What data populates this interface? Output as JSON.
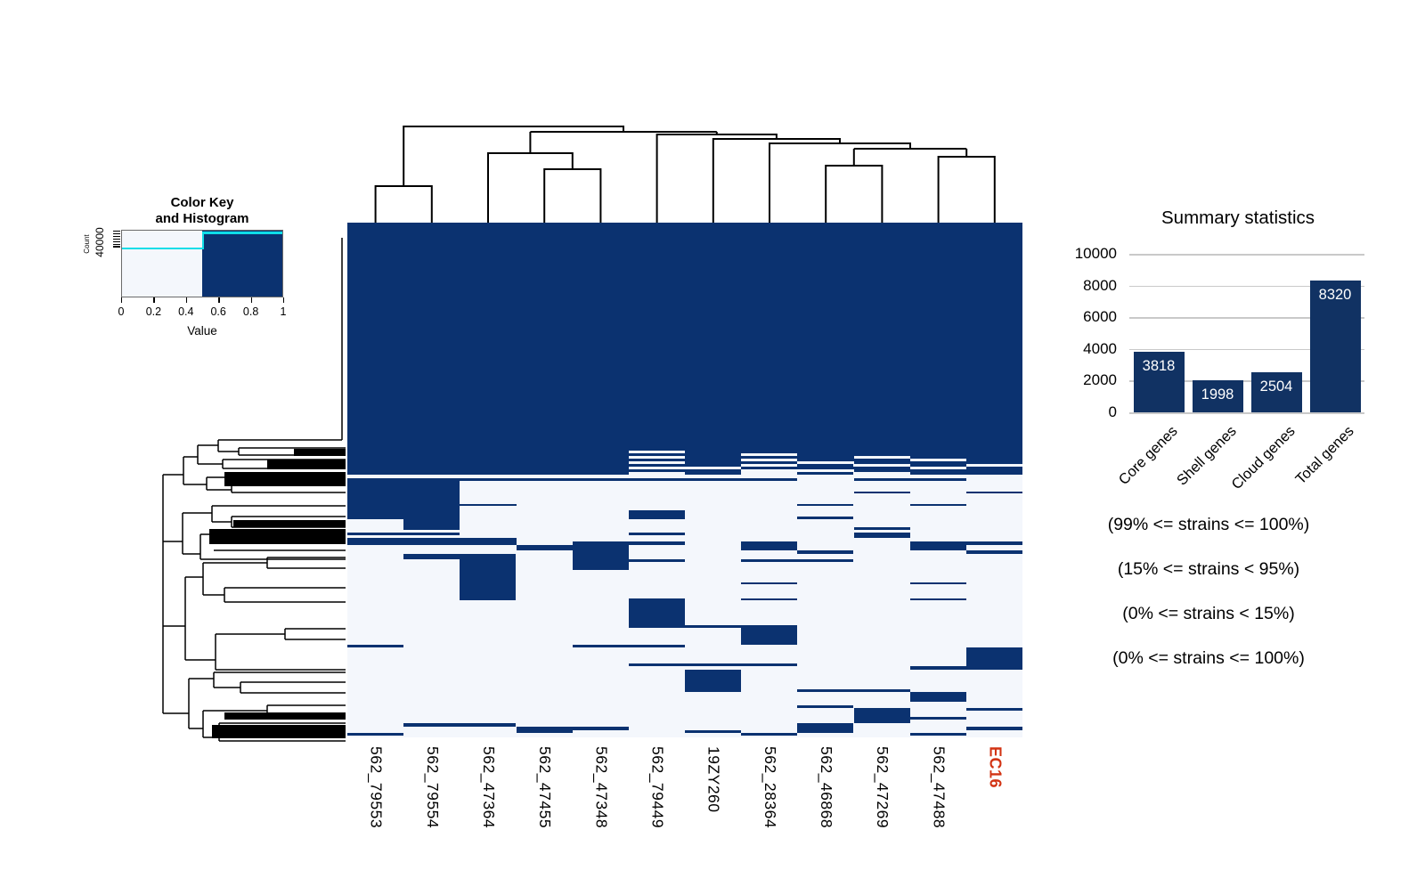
{
  "chart_data": [
    {
      "type": "heatmap",
      "title": "",
      "columns": [
        "562_79553",
        "562_79554",
        "562_47364",
        "562_47455",
        "562_47348",
        "562_79449",
        "19ZY260",
        "562_28364",
        "562_46868",
        "562_47269",
        "562_47488",
        "EC16"
      ],
      "highlight_column": "EC16",
      "highlight_color": "#d23313",
      "value_colors": {
        "0": "#f4f7fc",
        "1": "#0b3270"
      },
      "rows": [
        [
          256,
          "111111111111"
        ],
        [
          3,
          "111110111111"
        ],
        [
          3,
          "111111101111"
        ],
        [
          3,
          "111110111011"
        ],
        [
          3,
          "111111101101"
        ],
        [
          3,
          "111110110111"
        ],
        [
          3,
          "111111101010"
        ],
        [
          3,
          "111110011101"
        ],
        [
          3,
          "111111100111"
        ],
        [
          3,
          "111110101011"
        ],
        [
          4,
          "000000000000"
        ],
        [
          3,
          "111111110110"
        ],
        [
          12,
          "110000000000"
        ],
        [
          2,
          "110000000101"
        ],
        [
          12,
          "110000000000"
        ],
        [
          2,
          "111000001010"
        ],
        [
          5,
          "110000000000"
        ],
        [
          7,
          "110001000000"
        ],
        [
          3,
          "110001001000"
        ],
        [
          9,
          "010000000000"
        ],
        [
          3,
          "010000000100"
        ],
        [
          3,
          "000000000000"
        ],
        [
          3,
          "110001000100"
        ],
        [
          3,
          "000000000100"
        ],
        [
          4,
          "111000000000"
        ],
        [
          4,
          "111011010011"
        ],
        [
          6,
          "000110010010"
        ],
        [
          4,
          "000010001001"
        ],
        [
          6,
          "011010000000"
        ],
        [
          3,
          "001011011000"
        ],
        [
          9,
          "001010000000"
        ],
        [
          14,
          "001000000000"
        ],
        [
          2,
          "001000010010"
        ],
        [
          16,
          "001000000000"
        ],
        [
          2,
          "001001010010"
        ],
        [
          28,
          "000001000000"
        ],
        [
          3,
          "000001110000"
        ],
        [
          19,
          "000000010000"
        ],
        [
          3,
          "100011000000"
        ],
        [
          18,
          "000000000001"
        ],
        [
          3,
          "000001110001"
        ],
        [
          4,
          "000000000011"
        ],
        [
          22,
          "000000100000"
        ],
        [
          3,
          "000000101100"
        ],
        [
          11,
          "000000000010"
        ],
        [
          4,
          "000000000000"
        ],
        [
          3,
          "000000001000"
        ],
        [
          3,
          "000000000101"
        ],
        [
          7,
          "000000000100"
        ],
        [
          3,
          "000000000110"
        ],
        [
          4,
          "000000000100"
        ],
        [
          4,
          "011000001000"
        ],
        [
          4,
          "000110001001"
        ],
        [
          3,
          "000100101000"
        ],
        [
          3,
          "100000010010"
        ],
        [
          2,
          "000000000000"
        ]
      ]
    },
    {
      "type": "bar",
      "title": "Summary statistics",
      "categories": [
        "Core genes",
        "Shell genes",
        "Cloud genes",
        "Total genes"
      ],
      "values": [
        3818,
        1998,
        2504,
        8320
      ],
      "value_labels": [
        "3818",
        "1998",
        "2504",
        "8320"
      ],
      "ylim": [
        0,
        10000
      ],
      "yticks": [
        0,
        2000,
        4000,
        6000,
        8000,
        10000
      ],
      "grid": true,
      "bar_color": "#113263",
      "value_label_color": "#ffffff",
      "annotations": [
        "(99% <= strains <= 100%)",
        "(15% <= strains < 95%)",
        "(0% <= strains < 15%)",
        "(0% <= strains <= 100%)"
      ]
    },
    {
      "type": "histogram-key",
      "title_line1": "Color Key",
      "title_line2": "and Histogram",
      "ylabel": "Count",
      "ytick_label": "40000",
      "xlabel": "Value",
      "xticks": [
        "0",
        "0.2",
        "0.4",
        "0.6",
        "0.8",
        "1"
      ],
      "bins": [
        {
          "range": [
            0,
            0.5
          ],
          "color": "#f4f7fc"
        },
        {
          "range": [
            0.5,
            1
          ],
          "color": "#0b3270"
        }
      ],
      "trace_color": "#0fdde8"
    }
  ]
}
